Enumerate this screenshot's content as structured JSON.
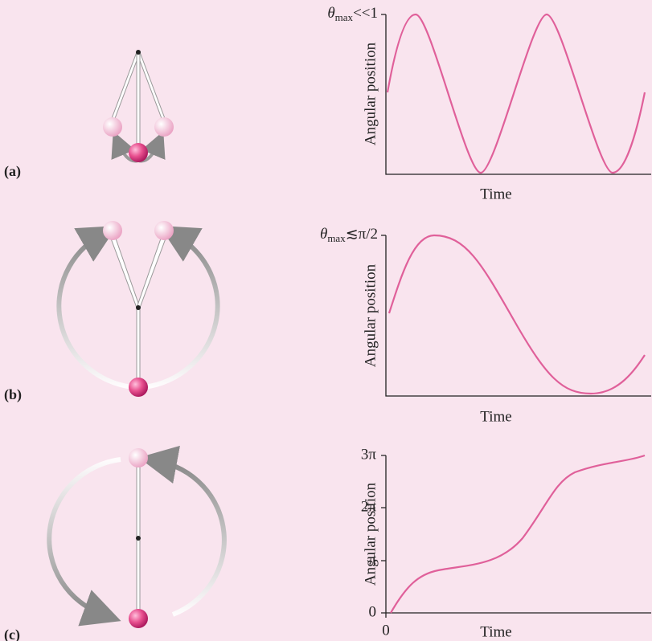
{
  "panels": [
    {
      "label": "(a)",
      "y_axis_label": "Angular position",
      "x_axis_label": "Time",
      "y_tick": {
        "symbol": "θ",
        "subscript": "max",
        "relation": "<<1"
      }
    },
    {
      "label": "(b)",
      "y_axis_label": "Angular position",
      "x_axis_label": "Time",
      "y_tick": {
        "symbol": "θ",
        "subscript": "max",
        "relation": "≲π/2"
      }
    },
    {
      "label": "(c)",
      "y_axis_label": "Angular position",
      "x_axis_label": "Time",
      "y_ticks": [
        "3π",
        "2π",
        "π",
        "0"
      ],
      "x_tick": "0"
    }
  ]
}
